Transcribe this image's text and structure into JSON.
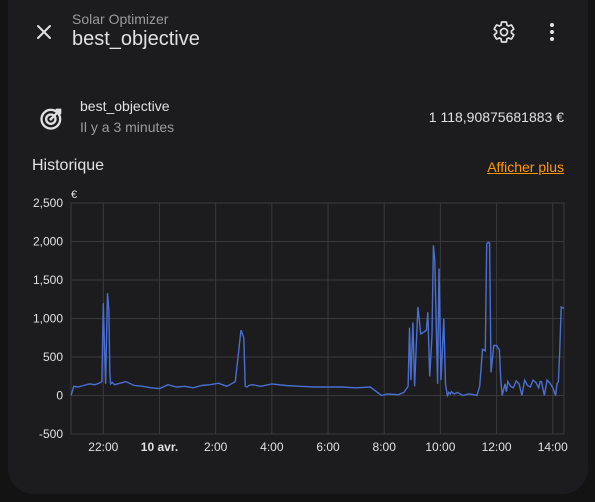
{
  "header": {
    "subtitle": "Solar Optimizer",
    "title": "best_objective"
  },
  "entity": {
    "name": "best_objective",
    "last_changed": "Il y a 3 minutes",
    "value": "1 118,90875681883 €"
  },
  "history": {
    "title": "Historique",
    "more_label": "Afficher plus"
  },
  "icons": {
    "close": "close-icon",
    "settings": "gear-icon",
    "menu": "more-vertical-icon",
    "entity": "target-arrow-icon"
  },
  "colors": {
    "accent": "#ff9800",
    "line": "#4a6fd1"
  },
  "chart_data": {
    "type": "line",
    "ylabel": "€",
    "ylim": [
      -500,
      2500
    ],
    "yticks": [
      "2,500",
      "2,000",
      "1,500",
      "1,000",
      "500",
      "0",
      "-500"
    ],
    "yticks_values": [
      2500,
      2000,
      1500,
      1000,
      500,
      0,
      -500
    ],
    "xticks": [
      {
        "label": "22:00",
        "x": 22,
        "bold": false
      },
      {
        "label": "10 avr.",
        "x": 24,
        "bold": true
      },
      {
        "label": "2:00",
        "x": 26,
        "bold": false
      },
      {
        "label": "4:00",
        "x": 28,
        "bold": false
      },
      {
        "label": "6:00",
        "x": 30,
        "bold": false
      },
      {
        "label": "8:00",
        "x": 32,
        "bold": false
      },
      {
        "label": "10:00",
        "x": 34,
        "bold": false
      },
      {
        "label": "12:00",
        "x": 36,
        "bold": false
      },
      {
        "label": "14:00",
        "x": 38,
        "bold": false
      }
    ],
    "xlim": [
      20.85,
      38.4
    ],
    "grid": true,
    "series": [
      {
        "x": [
          20.85,
          20.95,
          21.1,
          21.3,
          21.5,
          21.7,
          21.85,
          21.95,
          22.0,
          22.02,
          22.08,
          22.15,
          22.2,
          22.23,
          22.26,
          22.32,
          22.4,
          22.6,
          22.8,
          23.1,
          23.4,
          23.7,
          24.0,
          24.3,
          24.6,
          24.9,
          25.2,
          25.5,
          25.8,
          26.1,
          26.4,
          26.7,
          26.9,
          27.0,
          27.05,
          27.12,
          27.18,
          27.3,
          27.6,
          28.0,
          28.5,
          29.0,
          29.5,
          30.0,
          30.5,
          31.0,
          31.5,
          31.8,
          31.9,
          32.1,
          32.5,
          32.7,
          32.85,
          32.9,
          32.95,
          33.02,
          33.08,
          33.2,
          33.3,
          33.4,
          33.5,
          33.55,
          33.62,
          33.7,
          33.75,
          33.8,
          33.9,
          33.95,
          34.02,
          34.12,
          34.18,
          34.25,
          34.3,
          34.35,
          34.4,
          34.45,
          34.5,
          34.6,
          34.8,
          35.0,
          35.2,
          35.3,
          35.4,
          35.5,
          35.6,
          35.65,
          35.7,
          35.75,
          35.8,
          35.9,
          36.0,
          36.1,
          36.15,
          36.2,
          36.3,
          36.35,
          36.4,
          36.5,
          36.6,
          36.7,
          36.8,
          36.9,
          37.0,
          37.1,
          37.2,
          37.3,
          37.4,
          37.5,
          37.55,
          37.6,
          37.7,
          37.8,
          37.9,
          38.0,
          38.1,
          38.15,
          38.2,
          38.25,
          38.3,
          38.4
        ],
        "y": [
          0,
          120,
          110,
          130,
          150,
          140,
          160,
          180,
          1200,
          900,
          150,
          1330,
          1100,
          300,
          150,
          170,
          140,
          160,
          180,
          130,
          120,
          100,
          90,
          140,
          110,
          120,
          100,
          130,
          140,
          160,
          120,
          180,
          850,
          750,
          120,
          110,
          130,
          140,
          120,
          150,
          130,
          120,
          110,
          110,
          110,
          100,
          110,
          30,
          0,
          20,
          10,
          40,
          120,
          880,
          200,
          950,
          120,
          1150,
          800,
          820,
          850,
          1080,
          250,
          780,
          1950,
          1760,
          150,
          1650,
          200,
          1000,
          150,
          0,
          40,
          20,
          50,
          30,
          20,
          40,
          0,
          20,
          10,
          0,
          120,
          600,
          580,
          1970,
          1990,
          1980,
          300,
          650,
          650,
          590,
          200,
          0,
          150,
          50,
          180,
          120,
          100,
          190,
          150,
          0,
          200,
          130,
          110,
          200,
          170,
          100,
          180,
          180,
          0,
          200,
          160,
          100,
          0,
          150,
          180,
          600,
          1150,
          1130
        ]
      }
    ]
  }
}
